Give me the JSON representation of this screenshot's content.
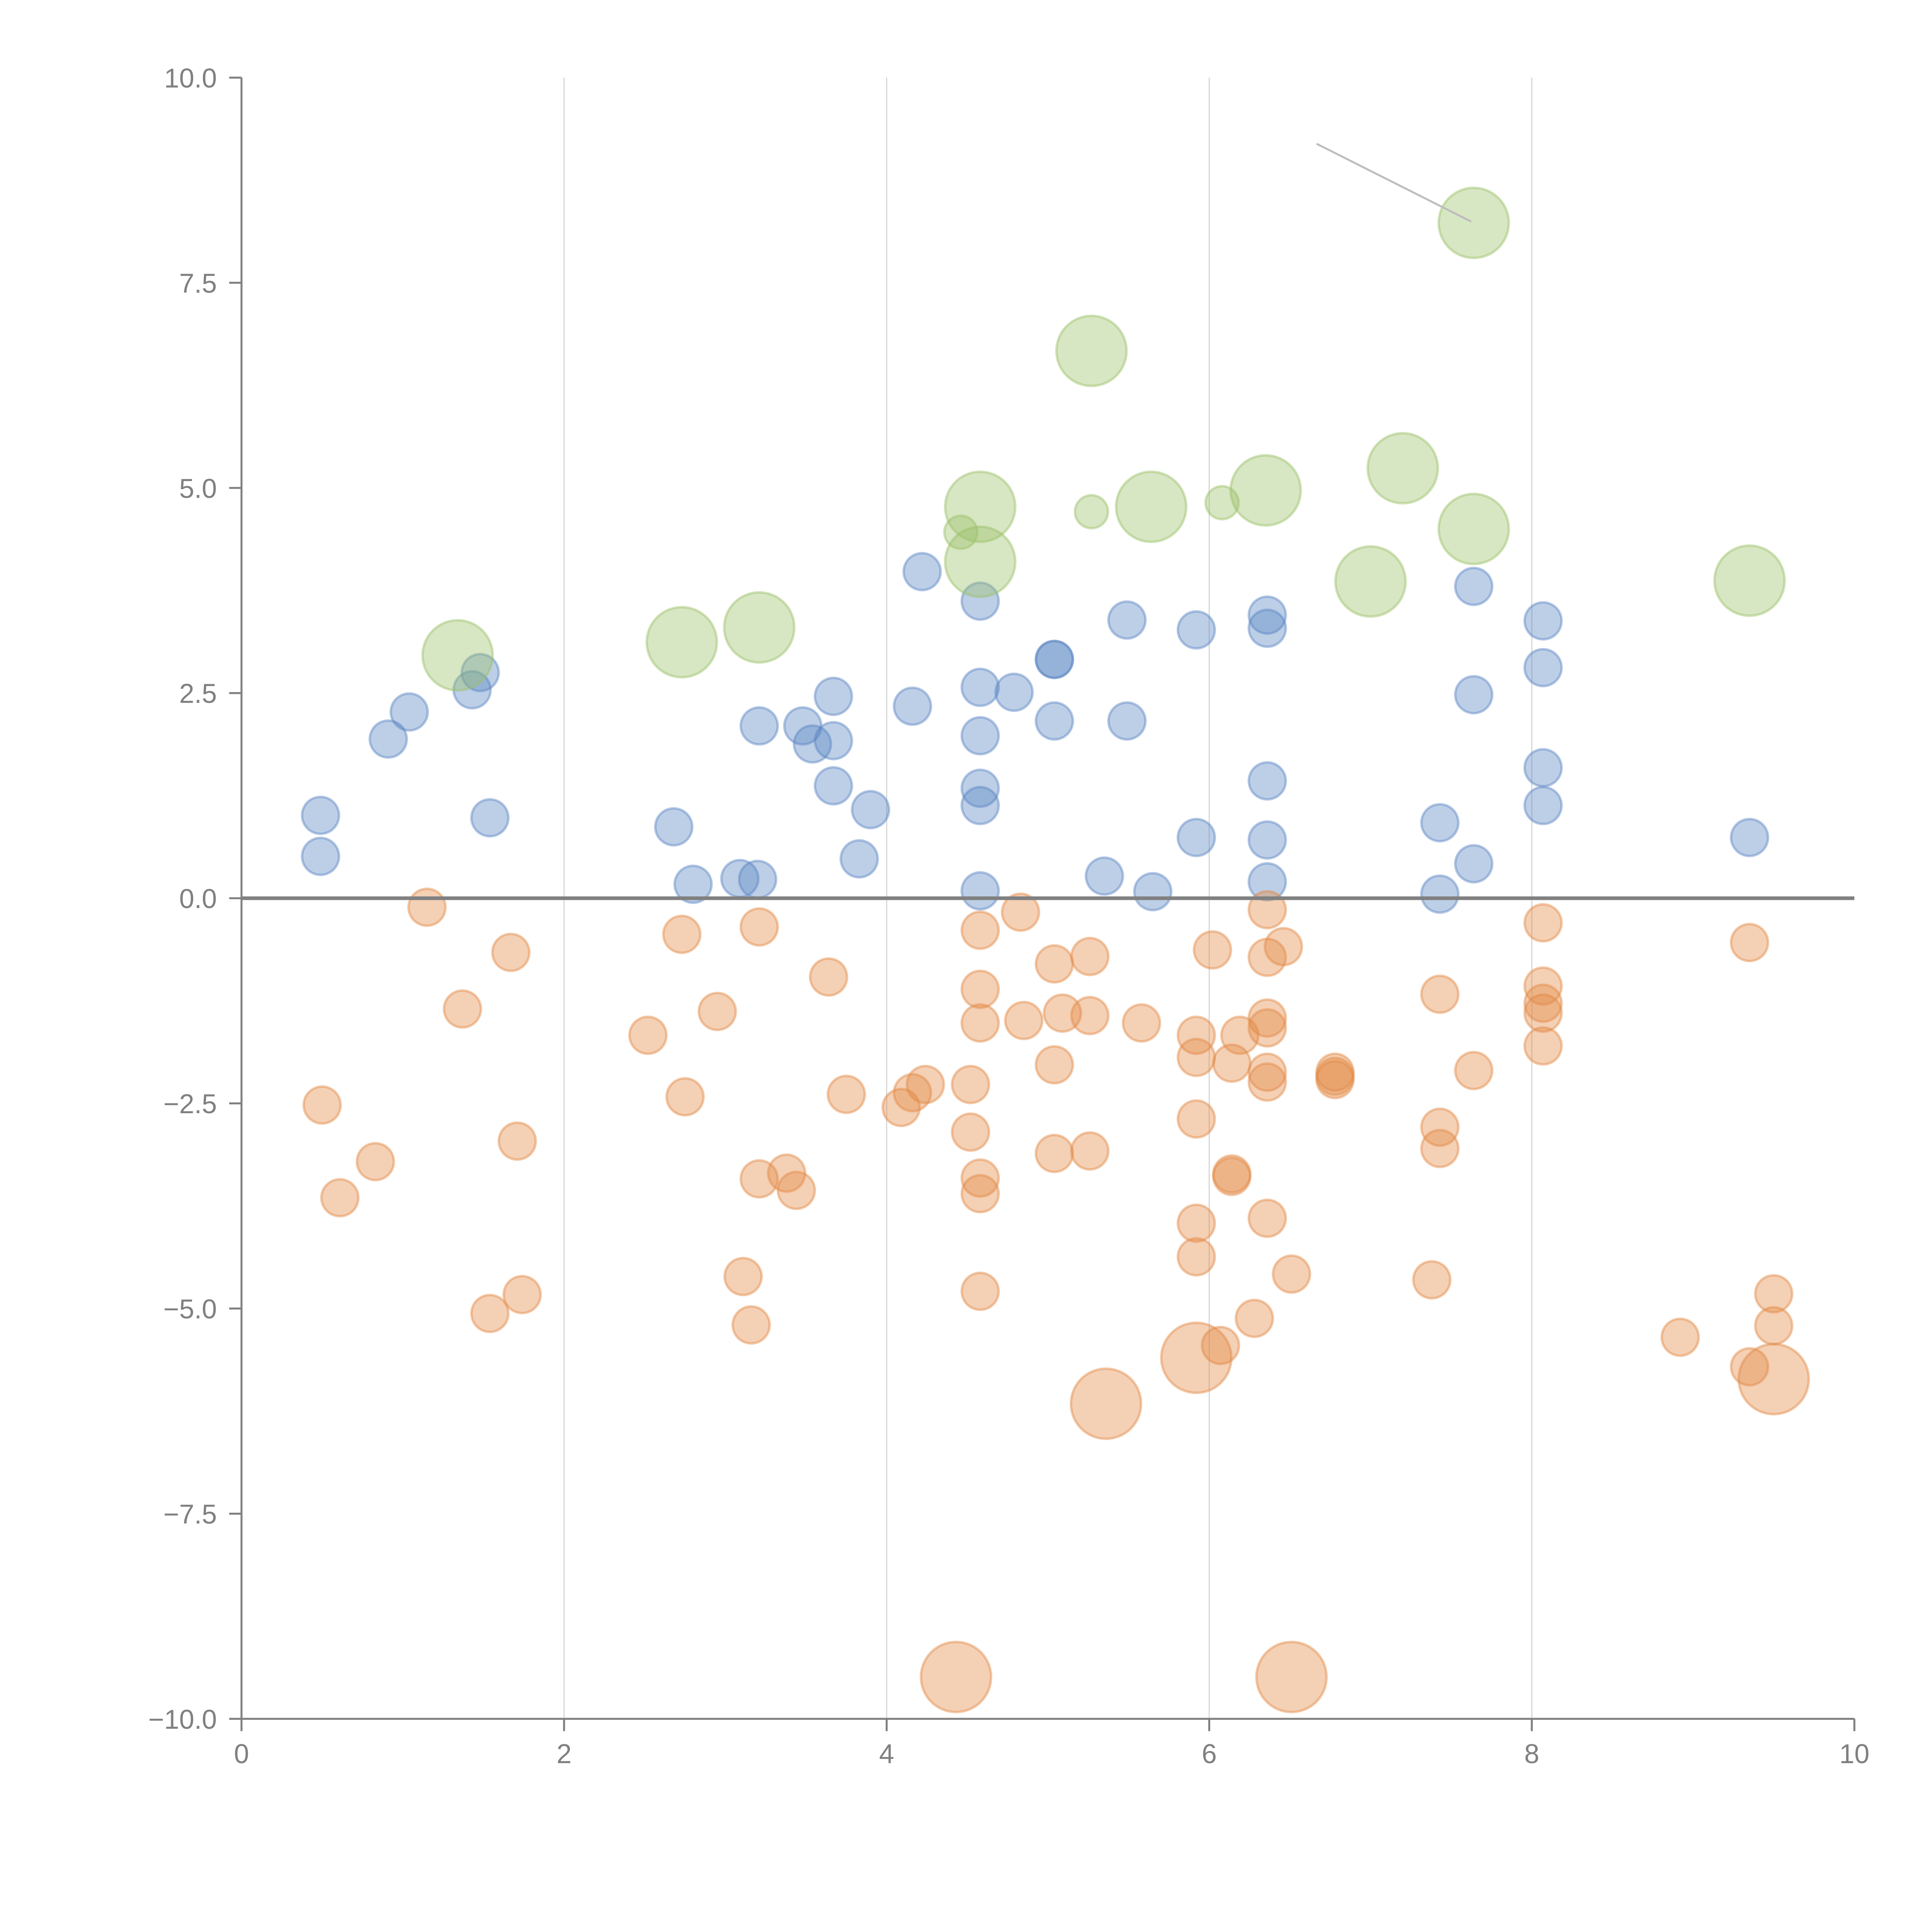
{
  "chart_data": {
    "type": "scatter",
    "title": "",
    "xlabel": "",
    "ylabel": "",
    "xlim": [
      0,
      10
    ],
    "ylim": [
      -10,
      10
    ],
    "grid": {
      "x": true,
      "y": false
    },
    "zero_line": true,
    "legend": "none",
    "x_ticks": [
      "0",
      "2",
      "4",
      "6",
      "8",
      "10"
    ],
    "x_tick_values": [
      0,
      2,
      4,
      6,
      8,
      10
    ],
    "y_ticks": [
      "10.0",
      "7.5",
      "5.0",
      "2.5",
      "0.0",
      "−2.5",
      "−5.0",
      "−7.5",
      "−10.0"
    ],
    "y_tick_values": [
      10,
      7.5,
      5,
      2.5,
      0,
      -2.5,
      -5,
      -7.5,
      -10
    ],
    "series": [
      {
        "name": "blue",
        "color": "#5b86c4",
        "points": [
          {
            "x": 0.49,
            "y": 1.01,
            "size": 1
          },
          {
            "x": 0.49,
            "y": 0.51,
            "size": 1
          },
          {
            "x": 0.91,
            "y": 1.94,
            "size": 1
          },
          {
            "x": 1.04,
            "y": 2.27,
            "size": 1
          },
          {
            "x": 1.43,
            "y": 2.54,
            "size": 1
          },
          {
            "x": 1.48,
            "y": 2.75,
            "size": 1
          },
          {
            "x": 1.54,
            "y": 0.98,
            "size": 1
          },
          {
            "x": 2.68,
            "y": 0.87,
            "size": 1
          },
          {
            "x": 2.8,
            "y": 0.17,
            "size": 1
          },
          {
            "x": 3.09,
            "y": 0.24,
            "size": 1
          },
          {
            "x": 3.2,
            "y": 0.23,
            "size": 1
          },
          {
            "x": 3.21,
            "y": 2.1,
            "size": 1
          },
          {
            "x": 3.48,
            "y": 2.1,
            "size": 1
          },
          {
            "x": 3.54,
            "y": 1.88,
            "size": 1
          },
          {
            "x": 3.67,
            "y": 2.46,
            "size": 1
          },
          {
            "x": 3.67,
            "y": 1.92,
            "size": 1
          },
          {
            "x": 3.67,
            "y": 1.37,
            "size": 1
          },
          {
            "x": 3.83,
            "y": 0.48,
            "size": 1
          },
          {
            "x": 3.9,
            "y": 1.08,
            "size": 1
          },
          {
            "x": 4.16,
            "y": 2.34,
            "size": 1
          },
          {
            "x": 4.22,
            "y": 3.98,
            "size": 1
          },
          {
            "x": 4.58,
            "y": 3.62,
            "size": 1
          },
          {
            "x": 4.58,
            "y": 2.57,
            "size": 1
          },
          {
            "x": 4.79,
            "y": 2.51,
            "size": 1
          },
          {
            "x": 4.58,
            "y": 1.98,
            "size": 1
          },
          {
            "x": 4.58,
            "y": 1.34,
            "size": 1
          },
          {
            "x": 4.58,
            "y": 1.13,
            "size": 1
          },
          {
            "x": 4.58,
            "y": 0.09,
            "size": 1
          },
          {
            "x": 5.04,
            "y": 2.91,
            "size": 1
          },
          {
            "x": 5.04,
            "y": 2.91,
            "size": 1
          },
          {
            "x": 5.04,
            "y": 2.16,
            "size": 1
          },
          {
            "x": 5.35,
            "y": 0.27,
            "size": 1
          },
          {
            "x": 5.49,
            "y": 3.39,
            "size": 1
          },
          {
            "x": 5.49,
            "y": 2.16,
            "size": 1
          },
          {
            "x": 5.65,
            "y": 0.08,
            "size": 1
          },
          {
            "x": 5.92,
            "y": 3.27,
            "size": 1
          },
          {
            "x": 5.92,
            "y": 0.74,
            "size": 1
          },
          {
            "x": 6.36,
            "y": 3.45,
            "size": 1
          },
          {
            "x": 6.36,
            "y": 3.29,
            "size": 1
          },
          {
            "x": 6.36,
            "y": 1.43,
            "size": 1
          },
          {
            "x": 6.36,
            "y": 0.71,
            "size": 1
          },
          {
            "x": 6.36,
            "y": 0.2,
            "size": 1
          },
          {
            "x": 7.43,
            "y": 0.92,
            "size": 1
          },
          {
            "x": 7.43,
            "y": 0.05,
            "size": 1
          },
          {
            "x": 7.64,
            "y": 3.8,
            "size": 1
          },
          {
            "x": 7.64,
            "y": 2.48,
            "size": 1
          },
          {
            "x": 7.64,
            "y": 0.42,
            "size": 1
          },
          {
            "x": 8.07,
            "y": 3.38,
            "size": 1
          },
          {
            "x": 8.07,
            "y": 2.81,
            "size": 1
          },
          {
            "x": 8.07,
            "y": 1.59,
            "size": 1
          },
          {
            "x": 8.07,
            "y": 1.13,
            "size": 1
          },
          {
            "x": 9.35,
            "y": 0.74,
            "size": 1
          }
        ]
      },
      {
        "name": "green",
        "color": "#9cc068",
        "points": [
          {
            "x": 1.34,
            "y": 2.96,
            "size": 3.6
          },
          {
            "x": 2.73,
            "y": 3.12,
            "size": 3.6
          },
          {
            "x": 3.21,
            "y": 3.3,
            "size": 3.6
          },
          {
            "x": 4.46,
            "y": 4.46,
            "size": 0.8
          },
          {
            "x": 4.58,
            "y": 4.77,
            "size": 3.6
          },
          {
            "x": 4.58,
            "y": 4.1,
            "size": 3.6
          },
          {
            "x": 5.27,
            "y": 6.67,
            "size": 3.6
          },
          {
            "x": 5.27,
            "y": 4.71,
            "size": 0.8
          },
          {
            "x": 5.64,
            "y": 4.77,
            "size": 3.6
          },
          {
            "x": 6.08,
            "y": 4.82,
            "size": 0.8
          },
          {
            "x": 6.35,
            "y": 4.97,
            "size": 3.6
          },
          {
            "x": 7.0,
            "y": 3.86,
            "size": 3.6
          },
          {
            "x": 7.2,
            "y": 5.24,
            "size": 3.6
          },
          {
            "x": 7.64,
            "y": 4.5,
            "size": 3.6
          },
          {
            "x": 7.64,
            "y": 8.23,
            "size": 3.6
          },
          {
            "x": 9.35,
            "y": 3.87,
            "size": 3.6
          }
        ]
      },
      {
        "name": "orange",
        "color": "#e38a45",
        "points": [
          {
            "x": 1.15,
            "y": -0.11,
            "size": 1
          },
          {
            "x": 1.37,
            "y": -1.35,
            "size": 1
          },
          {
            "x": 1.67,
            "y": -0.66,
            "size": 1
          },
          {
            "x": 0.5,
            "y": -2.52,
            "size": 1
          },
          {
            "x": 0.83,
            "y": -3.21,
            "size": 1
          },
          {
            "x": 0.61,
            "y": -3.65,
            "size": 1
          },
          {
            "x": 1.71,
            "y": -2.96,
            "size": 1
          },
          {
            "x": 1.54,
            "y": -5.06,
            "size": 1
          },
          {
            "x": 1.74,
            "y": -4.83,
            "size": 1
          },
          {
            "x": 2.52,
            "y": -1.67,
            "size": 1
          },
          {
            "x": 2.73,
            "y": -0.44,
            "size": 1
          },
          {
            "x": 2.75,
            "y": -2.42,
            "size": 1
          },
          {
            "x": 2.95,
            "y": -1.38,
            "size": 1
          },
          {
            "x": 3.21,
            "y": -0.35,
            "size": 1
          },
          {
            "x": 3.11,
            "y": -4.61,
            "size": 1
          },
          {
            "x": 3.16,
            "y": -5.2,
            "size": 1
          },
          {
            "x": 3.21,
            "y": -3.42,
            "size": 1
          },
          {
            "x": 3.38,
            "y": -3.35,
            "size": 1
          },
          {
            "x": 3.44,
            "y": -3.56,
            "size": 1
          },
          {
            "x": 3.64,
            "y": -0.96,
            "size": 1
          },
          {
            "x": 3.75,
            "y": -2.39,
            "size": 1
          },
          {
            "x": 4.09,
            "y": -2.55,
            "size": 1
          },
          {
            "x": 4.16,
            "y": -2.37,
            "size": 1
          },
          {
            "x": 4.24,
            "y": -2.27,
            "size": 1
          },
          {
            "x": 4.52,
            "y": -2.27,
            "size": 1
          },
          {
            "x": 4.52,
            "y": -2.85,
            "size": 1
          },
          {
            "x": 4.58,
            "y": -0.39,
            "size": 1
          },
          {
            "x": 4.58,
            "y": -1.11,
            "size": 1
          },
          {
            "x": 4.58,
            "y": -1.52,
            "size": 1
          },
          {
            "x": 4.58,
            "y": -3.41,
            "size": 1
          },
          {
            "x": 4.58,
            "y": -3.6,
            "size": 1
          },
          {
            "x": 4.58,
            "y": -4.79,
            "size": 1
          },
          {
            "x": 4.83,
            "y": -0.17,
            "size": 1
          },
          {
            "x": 4.85,
            "y": -1.49,
            "size": 1
          },
          {
            "x": 5.04,
            "y": -0.8,
            "size": 1
          },
          {
            "x": 5.04,
            "y": -2.03,
            "size": 1
          },
          {
            "x": 5.04,
            "y": -3.11,
            "size": 1
          },
          {
            "x": 5.09,
            "y": -1.4,
            "size": 1
          },
          {
            "x": 5.26,
            "y": -0.71,
            "size": 1
          },
          {
            "x": 5.26,
            "y": -1.43,
            "size": 1
          },
          {
            "x": 5.26,
            "y": -3.08,
            "size": 1
          },
          {
            "x": 5.58,
            "y": -1.52,
            "size": 1
          },
          {
            "x": 5.92,
            "y": -1.67,
            "size": 1
          },
          {
            "x": 5.92,
            "y": -1.94,
            "size": 1
          },
          {
            "x": 5.92,
            "y": -2.69,
            "size": 1
          },
          {
            "x": 5.92,
            "y": -3.96,
            "size": 1
          },
          {
            "x": 5.92,
            "y": -4.37,
            "size": 1
          },
          {
            "x": 6.02,
            "y": -0.63,
            "size": 1
          },
          {
            "x": 6.14,
            "y": -2.01,
            "size": 1
          },
          {
            "x": 6.14,
            "y": -3.36,
            "size": 1
          },
          {
            "x": 6.14,
            "y": -3.39,
            "size": 1
          },
          {
            "x": 6.19,
            "y": -1.67,
            "size": 1
          },
          {
            "x": 6.36,
            "y": -0.14,
            "size": 1
          },
          {
            "x": 6.36,
            "y": -0.72,
            "size": 1
          },
          {
            "x": 6.36,
            "y": -1.46,
            "size": 1
          },
          {
            "x": 6.36,
            "y": -1.58,
            "size": 1
          },
          {
            "x": 6.36,
            "y": -2.12,
            "size": 1
          },
          {
            "x": 6.36,
            "y": -2.24,
            "size": 1
          },
          {
            "x": 6.36,
            "y": -3.9,
            "size": 1
          },
          {
            "x": 6.46,
            "y": -0.59,
            "size": 1
          },
          {
            "x": 6.51,
            "y": -4.58,
            "size": 1
          },
          {
            "x": 6.28,
            "y": -5.12,
            "size": 1
          },
          {
            "x": 6.07,
            "y": -5.45,
            "size": 1
          },
          {
            "x": 6.78,
            "y": -2.12,
            "size": 1
          },
          {
            "x": 6.78,
            "y": -2.17,
            "size": 1
          },
          {
            "x": 6.78,
            "y": -2.21,
            "size": 1
          },
          {
            "x": 7.43,
            "y": -1.17,
            "size": 1
          },
          {
            "x": 7.43,
            "y": -2.79,
            "size": 1
          },
          {
            "x": 7.43,
            "y": -3.05,
            "size": 1
          },
          {
            "x": 7.38,
            "y": -4.65,
            "size": 1
          },
          {
            "x": 7.64,
            "y": -2.1,
            "size": 1
          },
          {
            "x": 8.07,
            "y": -0.3,
            "size": 1
          },
          {
            "x": 8.07,
            "y": -1.07,
            "size": 1
          },
          {
            "x": 8.07,
            "y": -1.28,
            "size": 1
          },
          {
            "x": 8.07,
            "y": -1.4,
            "size": 1
          },
          {
            "x": 8.07,
            "y": -1.8,
            "size": 1
          },
          {
            "x": 8.92,
            "y": -5.35,
            "size": 1
          },
          {
            "x": 9.35,
            "y": -0.54,
            "size": 1
          },
          {
            "x": 9.35,
            "y": -5.71,
            "size": 1
          },
          {
            "x": 9.5,
            "y": -4.82,
            "size": 1
          },
          {
            "x": 9.5,
            "y": -5.21,
            "size": 1
          },
          {
            "x": 5.92,
            "y": -5.6,
            "size": 3.6
          },
          {
            "x": 5.36,
            "y": -6.16,
            "size": 3.6
          },
          {
            "x": 9.5,
            "y": -5.86,
            "size": 3.6
          },
          {
            "x": 4.43,
            "y": -9.49,
            "size": 3.6
          },
          {
            "x": 6.51,
            "y": -9.49,
            "size": 3.6
          }
        ]
      }
    ],
    "annotations": [
      {
        "type": "leader-line",
        "from": {
          "x": 6.67,
          "y": 9.19
        },
        "to": {
          "x": 7.62,
          "y": 8.25
        }
      }
    ]
  }
}
